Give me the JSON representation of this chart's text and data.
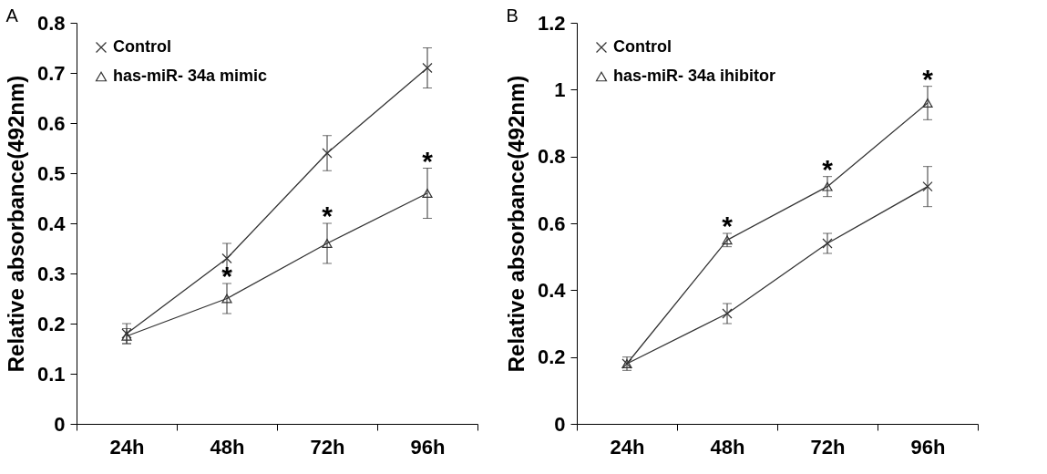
{
  "chart_data": [
    {
      "type": "line",
      "ylabel": "Relative absorbance(492nm)",
      "categories": [
        "24h",
        "48h",
        "72h",
        "96h"
      ],
      "series": [
        {
          "name": "Control",
          "color": "#333333",
          "marker": "cross",
          "values": [
            0.18,
            0.33,
            0.54,
            0.71
          ],
          "errors": [
            0.02,
            0.03,
            0.035,
            0.04
          ]
        },
        {
          "name": "has-miR- 34a mimic",
          "color": "#333333",
          "marker": "triangle",
          "values": [
            0.175,
            0.25,
            0.36,
            0.46
          ],
          "errors": [
            0.015,
            0.03,
            0.04,
            0.05
          ]
        }
      ],
      "ylim": [
        0,
        0.8
      ],
      "yticks": [
        0,
        0.1,
        0.2,
        0.3,
        0.4,
        0.5,
        0.6,
        0.7,
        0.8
      ],
      "grid": false,
      "legend": "top left",
      "annotations": [
        "A",
        {
          "text": "*",
          "x": "48h",
          "y": 0.25
        },
        {
          "text": "*",
          "x": "72h",
          "y": 0.36
        },
        {
          "text": "*",
          "x": "96h",
          "y": 0.46
        }
      ]
    },
    {
      "type": "line",
      "ylabel": "Relative absorbance(492nm)",
      "categories": [
        "24h",
        "48h",
        "72h",
        "96h"
      ],
      "series": [
        {
          "name": "Control",
          "color": "#333333",
          "marker": "cross",
          "values": [
            0.18,
            0.33,
            0.54,
            0.71
          ],
          "errors": [
            0.02,
            0.03,
            0.03,
            0.06
          ]
        },
        {
          "name": "has-miR- 34a ihibitor",
          "color": "#333333",
          "marker": "triangle",
          "values": [
            0.18,
            0.55,
            0.71,
            0.96
          ],
          "errors": [
            null,
            0.02,
            0.03,
            0.05
          ]
        }
      ],
      "ylim": [
        0,
        1.2
      ],
      "yticks": [
        0,
        0.2,
        0.4,
        0.6,
        0.8,
        1,
        1.2
      ],
      "grid": false,
      "legend": "top left",
      "annotations": [
        "B",
        {
          "text": "*",
          "x": "48h",
          "y": 0.55
        },
        {
          "text": "*",
          "x": "72h",
          "y": 0.71
        },
        {
          "text": "*",
          "x": "96h",
          "y": 0.96
        }
      ]
    }
  ]
}
